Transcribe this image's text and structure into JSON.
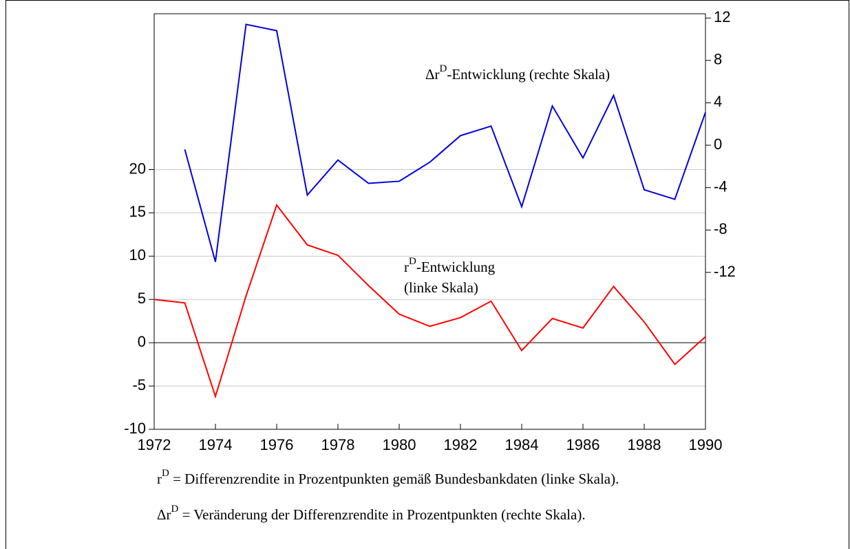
{
  "chart_data": {
    "type": "line",
    "x": [
      1972,
      1973,
      1974,
      1975,
      1976,
      1977,
      1978,
      1979,
      1980,
      1981,
      1982,
      1983,
      1984,
      1985,
      1986,
      1987,
      1988,
      1989,
      1990
    ],
    "xlim": [
      1972,
      1990
    ],
    "xticks": [
      1972,
      1974,
      1976,
      1978,
      1980,
      1982,
      1984,
      1986,
      1988,
      1990
    ],
    "ylim": [
      -10,
      38
    ],
    "yticks": [
      -10,
      -5,
      0,
      5,
      10,
      15,
      20
    ],
    "y2lim": [
      -26.8,
      12.4
    ],
    "y2ticks": [
      -12,
      -8,
      -4,
      0,
      4,
      8,
      12
    ],
    "grid": true,
    "series": [
      {
        "color": "#ff0000",
        "values": [
          5.0,
          4.6,
          -6.2,
          5.4,
          15.9,
          11.3,
          10.1,
          6.6,
          3.3,
          1.9,
          2.9,
          4.8,
          -0.9,
          2.8,
          1.7,
          6.5,
          2.4,
          -2.5,
          0.7
        ]
      },
      {
        "color": "#0000dd",
        "axis": "y2",
        "values": [
          null,
          -0.4,
          -11.0,
          11.4,
          10.8,
          -4.7,
          -1.4,
          -3.6,
          -3.4,
          -1.6,
          0.9,
          1.8,
          -5.8,
          3.7,
          -1.2,
          4.7,
          -4.2,
          -5.1,
          3.1
        ]
      }
    ],
    "annotations": [
      {
        "base": "Δr",
        "sup": "D",
        "rest": "-Entwicklung (rechte Skala)"
      },
      {
        "base": "r",
        "sup": "D",
        "rest": "-Entwicklung",
        "line2": "(linke Skala)"
      }
    ],
    "footnotes": [
      {
        "base": "r",
        "sup": "D",
        "rest": " = Differenzrendite in Prozentpunkten gemäß Bundesbankdaten (linke Skala)."
      },
      {
        "base": "Δr",
        "sup": "D",
        "rest": " = Veränderung der Differenzrendite in Prozentpunkten (rechte Skala)."
      }
    ]
  }
}
